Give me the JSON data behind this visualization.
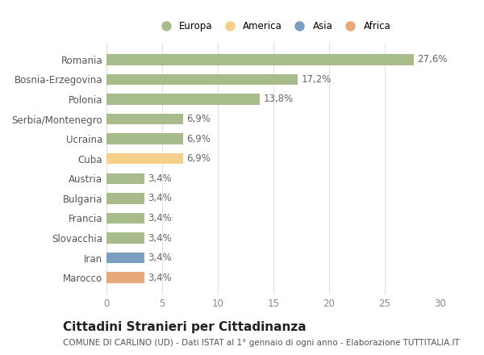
{
  "categories": [
    "Marocco",
    "Iran",
    "Slovacchia",
    "Francia",
    "Bulgaria",
    "Austria",
    "Cuba",
    "Ucraina",
    "Serbia/Montenegro",
    "Polonia",
    "Bosnia-Erzegovina",
    "Romania"
  ],
  "values": [
    3.4,
    3.4,
    3.4,
    3.4,
    3.4,
    3.4,
    6.9,
    6.9,
    6.9,
    13.8,
    17.2,
    27.6
  ],
  "bar_colors": [
    "#e8a87c",
    "#7a9fc2",
    "#a8bb8a",
    "#a8bb8a",
    "#a8bb8a",
    "#a8bb8a",
    "#f5d08a",
    "#a8bb8a",
    "#a8bb8a",
    "#a8bb8a",
    "#a8bb8a",
    "#a8bb8a"
  ],
  "value_labels": [
    "3,4%",
    "3,4%",
    "3,4%",
    "3,4%",
    "3,4%",
    "3,4%",
    "6,9%",
    "6,9%",
    "6,9%",
    "13,8%",
    "17,2%",
    "27,6%"
  ],
  "legend_labels": [
    "Europa",
    "America",
    "Asia",
    "Africa"
  ],
  "legend_colors": [
    "#a8bb8a",
    "#f5d08a",
    "#7a9fc2",
    "#e8a87c"
  ],
  "xlim": [
    0,
    30
  ],
  "xticks": [
    0,
    5,
    10,
    15,
    20,
    25,
    30
  ],
  "title": "Cittadini Stranieri per Cittadinanza",
  "subtitle": "COMUNE DI CARLINO (UD) - Dati ISTAT al 1° gennaio di ogni anno - Elaborazione TUTTITALIA.IT",
  "background_color": "#ffffff",
  "grid_color": "#e0e0e0",
  "title_fontsize": 11,
  "subtitle_fontsize": 7.5,
  "label_fontsize": 8.5,
  "tick_fontsize": 8.5
}
